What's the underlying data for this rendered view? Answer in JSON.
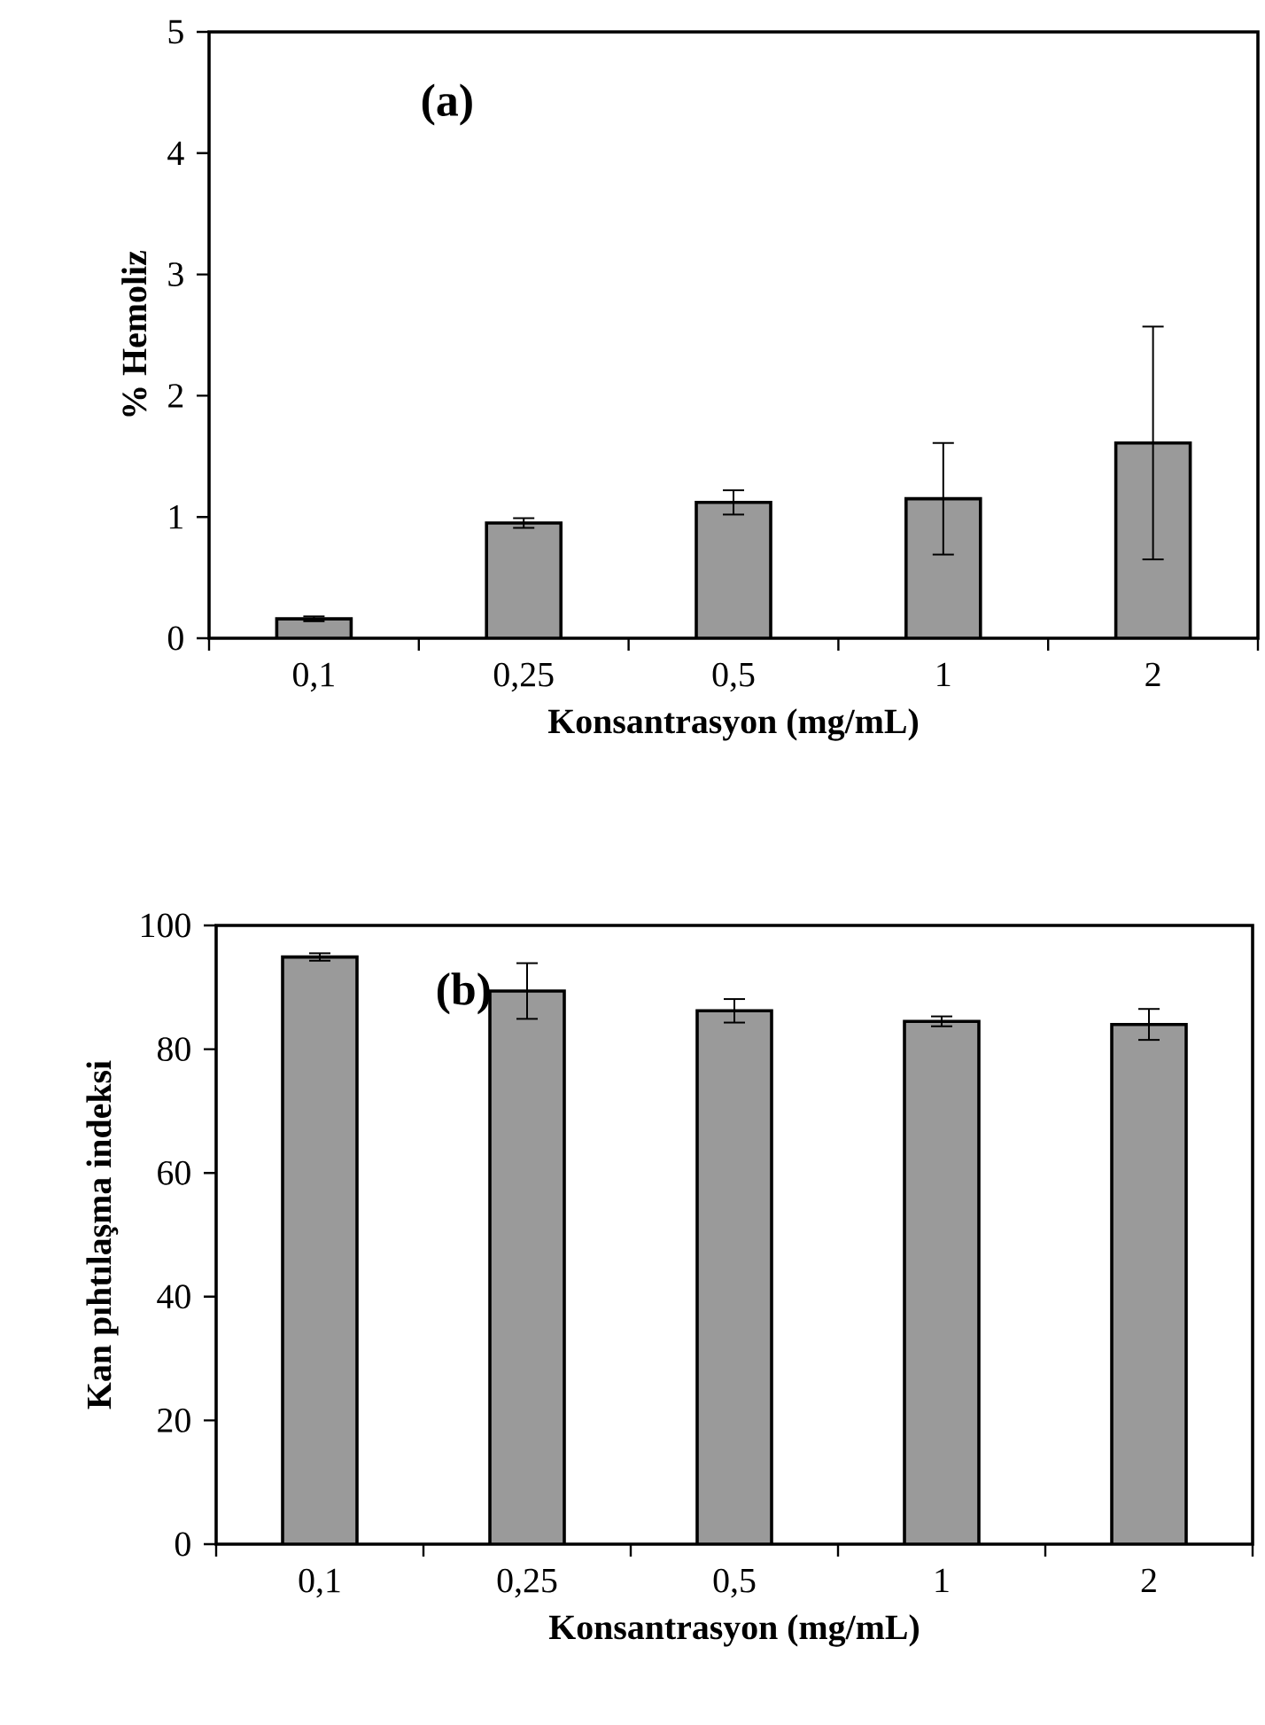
{
  "chart_data": [
    {
      "type": "bar",
      "categories": [
        "0,1",
        "0,25",
        "0,5",
        "1",
        "2"
      ],
      "xlabel": "Konsantrasyon  (mg/mL)",
      "ylabel": "% Hemoliz",
      "annotations": [
        "(a)"
      ],
      "values": [
        0.16,
        0.95,
        1.12,
        1.15,
        1.61
      ],
      "errors": [
        0.02,
        0.04,
        0.1,
        0.46,
        0.96
      ],
      "color": "#9a9a9a",
      "ylim": [
        0,
        5
      ],
      "yticks": [
        0,
        1,
        2,
        3,
        4,
        5
      ],
      "grid": false
    },
    {
      "type": "bar",
      "categories": [
        "0,1",
        "0,25",
        "0,5",
        "1",
        "2"
      ],
      "xlabel": "Konsantrasyon  (mg/mL)",
      "ylabel": "Kan pıhtılaşma  indeksi",
      "annotations": [
        "(b)"
      ],
      "values": [
        94.9,
        89.4,
        86.2,
        84.5,
        84.0
      ],
      "errors": [
        0.6,
        4.5,
        1.9,
        0.8,
        2.5
      ],
      "color": "#9a9a9a",
      "ylim": [
        0,
        100
      ],
      "yticks": [
        0,
        20,
        40,
        60,
        80,
        100
      ],
      "grid": false
    }
  ]
}
